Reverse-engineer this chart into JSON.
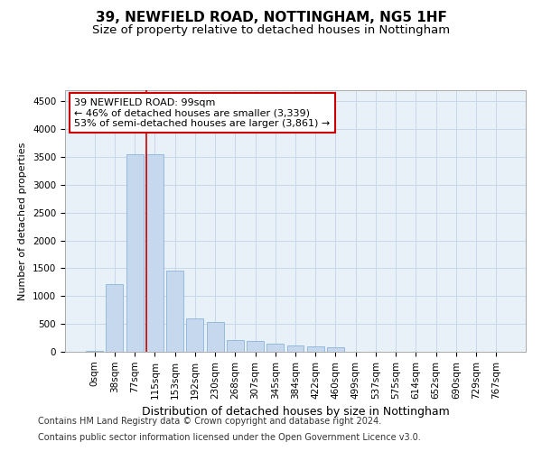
{
  "title": "39, NEWFIELD ROAD, NOTTINGHAM, NG5 1HF",
  "subtitle": "Size of property relative to detached houses in Nottingham",
  "xlabel": "Distribution of detached houses by size in Nottingham",
  "ylabel": "Number of detached properties",
  "categories": [
    "0sqm",
    "38sqm",
    "77sqm",
    "115sqm",
    "153sqm",
    "192sqm",
    "230sqm",
    "268sqm",
    "307sqm",
    "345sqm",
    "384sqm",
    "422sqm",
    "460sqm",
    "499sqm",
    "537sqm",
    "575sqm",
    "614sqm",
    "652sqm",
    "690sqm",
    "729sqm",
    "767sqm"
  ],
  "bar_values": [
    20,
    1220,
    3550,
    3550,
    1460,
    600,
    530,
    210,
    195,
    150,
    115,
    100,
    75,
    5,
    0,
    0,
    0,
    0,
    0,
    0,
    5
  ],
  "bar_color": "#c5d8ee",
  "bar_edge_color": "#8ab4d8",
  "vline_x": 2.6,
  "vline_color": "#cc0000",
  "annotation_text": "39 NEWFIELD ROAD: 99sqm\n← 46% of detached houses are smaller (3,339)\n53% of semi-detached houses are larger (3,861) →",
  "annotation_box_color": "#ffffff",
  "annotation_box_edge": "#cc0000",
  "ylim": [
    0,
    4700
  ],
  "yticks": [
    0,
    500,
    1000,
    1500,
    2000,
    2500,
    3000,
    3500,
    4000,
    4500
  ],
  "footer_line1": "Contains HM Land Registry data © Crown copyright and database right 2024.",
  "footer_line2": "Contains public sector information licensed under the Open Government Licence v3.0.",
  "bg_color": "#ffffff",
  "plot_bg_color": "#e8f0f8",
  "grid_color": "#c8d8e8",
  "title_fontsize": 11,
  "subtitle_fontsize": 9.5,
  "xlabel_fontsize": 9,
  "ylabel_fontsize": 8,
  "tick_fontsize": 7.5,
  "footer_fontsize": 7,
  "annot_fontsize": 8
}
